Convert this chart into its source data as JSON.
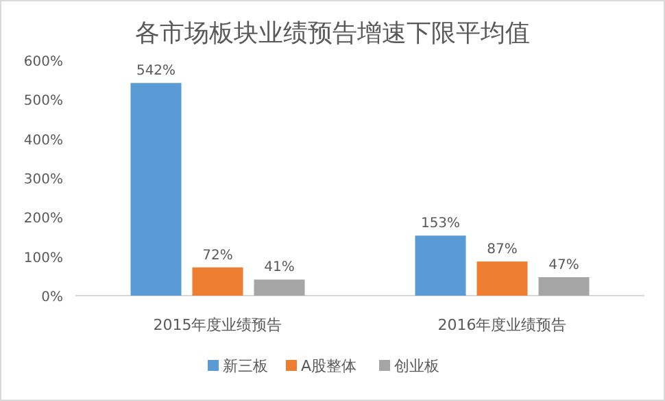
{
  "chart_data": {
    "type": "bar",
    "title": "各市场板块业绩预告增速下限平均值",
    "categories": [
      "2015年度业绩预告",
      "2016年度业绩预告"
    ],
    "series": [
      {
        "name": "新三板",
        "color": "#5b9bd5",
        "values": [
          542,
          153
        ],
        "value_labels": [
          "542%",
          "153%"
        ]
      },
      {
        "name": "A股整体",
        "color": "#ed7d31",
        "values": [
          72,
          87
        ],
        "value_labels": [
          "72%",
          "87%"
        ]
      },
      {
        "name": "创业板",
        "color": "#a5a5a5",
        "values": [
          41,
          47
        ],
        "value_labels": [
          "41%",
          "47%"
        ]
      }
    ],
    "ylim": [
      0,
      600
    ],
    "yticks": [
      {
        "value": 0,
        "label": "0%"
      },
      {
        "value": 100,
        "label": "100%"
      },
      {
        "value": 200,
        "label": "200%"
      },
      {
        "value": 300,
        "label": "300%"
      },
      {
        "value": 400,
        "label": "400%"
      },
      {
        "value": 500,
        "label": "500%"
      },
      {
        "value": 600,
        "label": "600%"
      }
    ],
    "legend": "bottom"
  }
}
